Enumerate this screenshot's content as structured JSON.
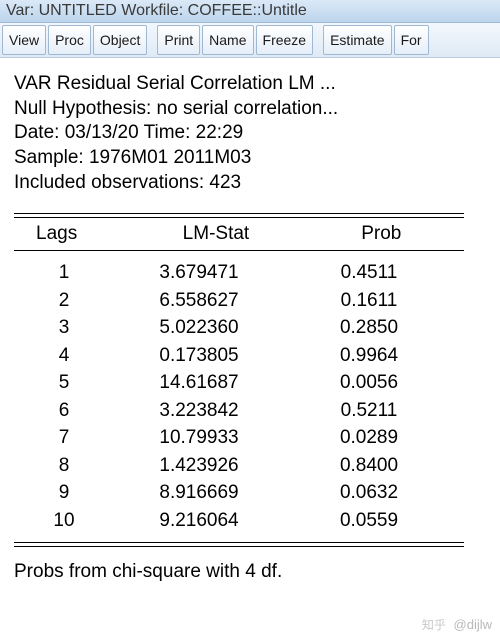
{
  "titlebar": "Var: UNTITLED   Workfile: COFFEE::Untitle",
  "toolbar": {
    "view": "View",
    "proc": "Proc",
    "object": "Object",
    "print": "Print",
    "name": "Name",
    "freeze": "Freeze",
    "estimate": "Estimate",
    "forecast": "For"
  },
  "report": {
    "title": "VAR Residual Serial Correlation LM ...",
    "null_hyp": "Null Hypothesis: no serial correlation...",
    "date_time": "Date: 03/13/20   Time: 22:29",
    "sample": "Sample: 1976M01 2011M03",
    "included": "Included observations: 423",
    "columns": {
      "lags": "Lags",
      "lm": "LM-Stat",
      "prob": "Prob"
    },
    "rows": [
      {
        "lag": "1",
        "lm": "3.679471",
        "prob": "0.4511"
      },
      {
        "lag": "2",
        "lm": "6.558627",
        "prob": "0.1611"
      },
      {
        "lag": "3",
        "lm": "5.022360",
        "prob": "0.2850"
      },
      {
        "lag": "4",
        "lm": "0.173805",
        "prob": "0.9964"
      },
      {
        "lag": "5",
        "lm": "14.61687",
        "prob": "0.0056"
      },
      {
        "lag": "6",
        "lm": "3.223842",
        "prob": "0.5211"
      },
      {
        "lag": "7",
        "lm": "10.79933",
        "prob": "0.0289"
      },
      {
        "lag": "8",
        "lm": "1.423926",
        "prob": "0.8400"
      },
      {
        "lag": "9",
        "lm": "8.916669",
        "prob": "0.0632"
      },
      {
        "lag": "10",
        "lm": "9.216064",
        "prob": "0.0559"
      }
    ],
    "footer": "Probs from chi-square with 4 df."
  },
  "watermark": {
    "logo": "知乎",
    "handle": "@dijlw"
  }
}
